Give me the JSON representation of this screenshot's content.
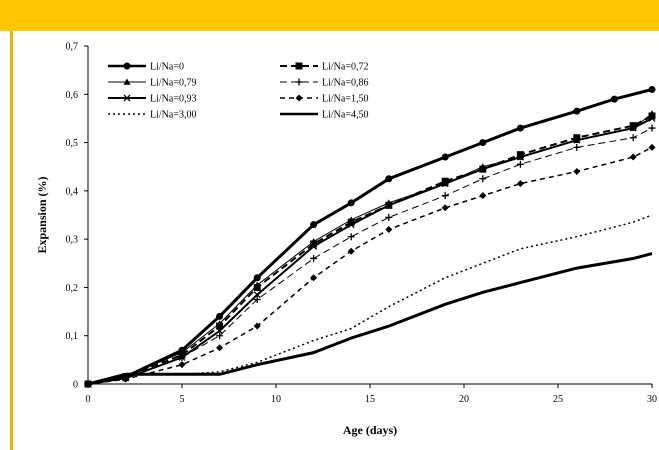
{
  "chart_data": {
    "type": "line",
    "title": "",
    "xlabel": "Age (days)",
    "ylabel": "Expansion  (%)",
    "xlim": [
      0,
      30
    ],
    "ylim": [
      0,
      0.7
    ],
    "xticks": [
      0,
      5,
      10,
      15,
      20,
      25,
      30
    ],
    "xtick_labels": [
      "0",
      "5",
      "10",
      "15",
      "20",
      "25",
      "30"
    ],
    "yticks": [
      0,
      0.1,
      0.2,
      0.3,
      0.4,
      0.5,
      0.6,
      0.7
    ],
    "ytick_labels": [
      "0",
      "0,1",
      "0,2",
      "0,3",
      "0,4",
      "0,5",
      "0,6",
      "0,7"
    ],
    "grid": false,
    "legend_position": "top-left",
    "series": [
      {
        "name": "Li/Na=0",
        "style": "solid",
        "width": 3,
        "marker": "circle",
        "x": [
          0,
          2,
          5,
          7,
          9,
          12,
          14,
          16,
          19,
          21,
          23,
          26,
          28,
          30
        ],
        "y": [
          0,
          0.015,
          0.07,
          0.14,
          0.22,
          0.33,
          0.375,
          0.425,
          0.47,
          0.5,
          0.53,
          0.565,
          0.59,
          0.61
        ]
      },
      {
        "name": "Li/Na=0,72",
        "style": "dash",
        "width": 2,
        "marker": "square",
        "x": [
          0,
          2,
          5,
          7,
          9,
          12,
          14,
          16,
          19,
          21,
          23,
          26,
          29,
          30
        ],
        "y": [
          0,
          0.015,
          0.06,
          0.12,
          0.2,
          0.29,
          0.335,
          0.37,
          0.42,
          0.445,
          0.475,
          0.51,
          0.535,
          0.555
        ]
      },
      {
        "name": "Li/Na=0,79",
        "style": "solid",
        "width": 1,
        "marker": "triangle",
        "x": [
          0,
          2,
          5,
          7,
          9,
          12,
          14,
          16,
          19,
          21,
          23,
          26,
          29,
          30
        ],
        "y": [
          0,
          0.015,
          0.065,
          0.125,
          0.205,
          0.295,
          0.34,
          0.375,
          0.415,
          0.45,
          0.47,
          0.505,
          0.53,
          0.56
        ]
      },
      {
        "name": "Li/Na=0,86",
        "style": "dash",
        "width": 1,
        "marker": "plus",
        "x": [
          0,
          2,
          5,
          7,
          9,
          12,
          14,
          16,
          19,
          21,
          23,
          26,
          29,
          30
        ],
        "y": [
          0,
          0.012,
          0.055,
          0.1,
          0.175,
          0.26,
          0.305,
          0.345,
          0.39,
          0.425,
          0.455,
          0.49,
          0.51,
          0.53
        ]
      },
      {
        "name": "Li/Na=0,93",
        "style": "solid",
        "width": 2,
        "marker": "x",
        "x": [
          0,
          2,
          5,
          7,
          9,
          12,
          14,
          16,
          19,
          21,
          23,
          26,
          29,
          30
        ],
        "y": [
          0,
          0.012,
          0.055,
          0.11,
          0.185,
          0.285,
          0.33,
          0.37,
          0.415,
          0.445,
          0.47,
          0.505,
          0.53,
          0.55
        ]
      },
      {
        "name": "Li/Na=1,50",
        "style": "dashlong",
        "width": 1.5,
        "marker": "diamond",
        "x": [
          0,
          2,
          5,
          7,
          9,
          12,
          14,
          16,
          19,
          21,
          23,
          26,
          29,
          30
        ],
        "y": [
          0,
          0.01,
          0.04,
          0.075,
          0.12,
          0.22,
          0.275,
          0.32,
          0.365,
          0.39,
          0.415,
          0.44,
          0.47,
          0.49
        ]
      },
      {
        "name": "Li/Na=3,00",
        "style": "dot",
        "width": 1.5,
        "marker": "none",
        "x": [
          0,
          2,
          5,
          7,
          9,
          12,
          14,
          16,
          19,
          21,
          23,
          26,
          29,
          30
        ],
        "y": [
          0,
          0.02,
          0.02,
          0.025,
          0.045,
          0.09,
          0.115,
          0.16,
          0.22,
          0.25,
          0.28,
          0.305,
          0.335,
          0.35
        ]
      },
      {
        "name": "Li/Na=4,50",
        "style": "solid",
        "width": 3,
        "marker": "none",
        "x": [
          0,
          2,
          5,
          7,
          9,
          12,
          14,
          16,
          19,
          21,
          23,
          26,
          29,
          30
        ],
        "y": [
          0,
          0.02,
          0.02,
          0.02,
          0.04,
          0.065,
          0.095,
          0.12,
          0.165,
          0.19,
          0.21,
          0.24,
          0.26,
          0.27
        ]
      }
    ]
  }
}
